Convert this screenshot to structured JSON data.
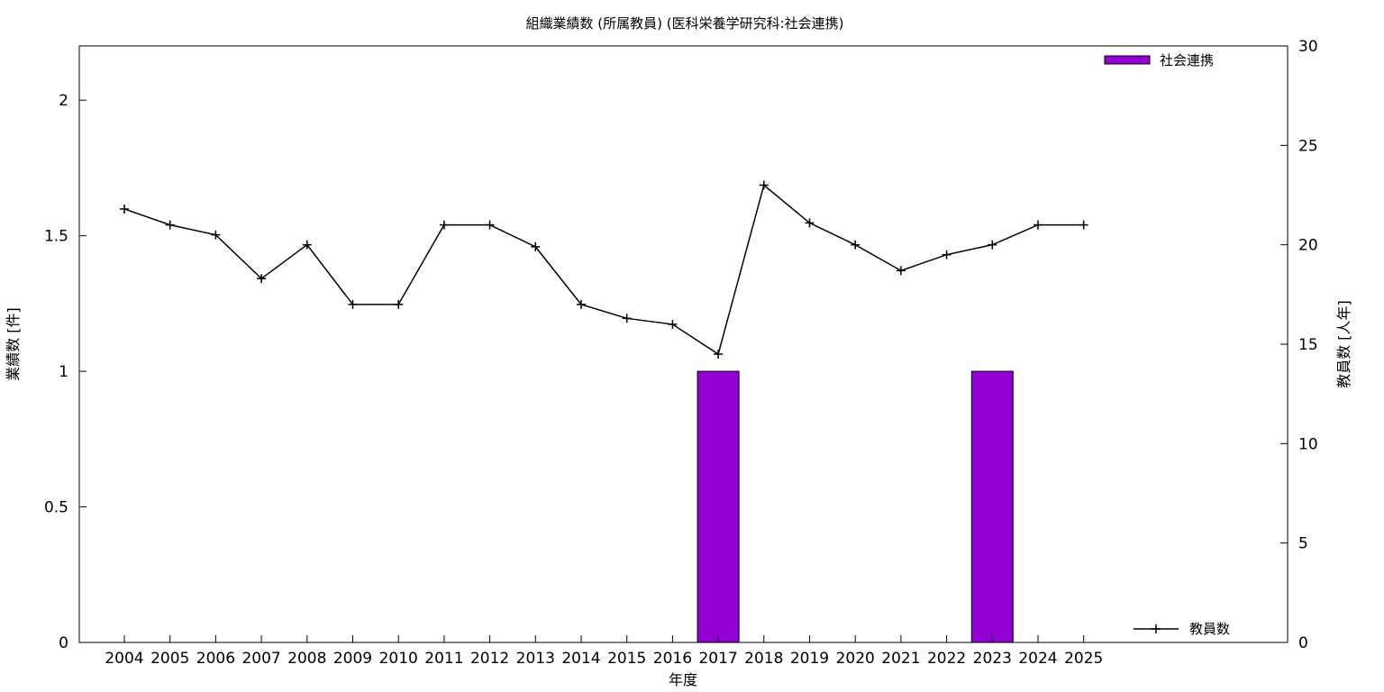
{
  "chart_data": {
    "type": "bar",
    "title": "組織業績数 (所属教員) (医科栄養学研究科:社会連携)",
    "xlabel": "年度",
    "ylabel": "業績数 [件]",
    "y2label": "教員数 [人年]",
    "categories": [
      "2004",
      "2005",
      "2006",
      "2007",
      "2008",
      "2009",
      "2010",
      "2011",
      "2012",
      "2013",
      "2014",
      "2015",
      "2016",
      "2017",
      "2018",
      "2019",
      "2020",
      "2021",
      "2022",
      "2023",
      "2024",
      "2025"
    ],
    "ylim": [
      0,
      2.2
    ],
    "yticks": [
      "0",
      "0.5",
      "1",
      "1.5",
      "2"
    ],
    "y2lim": [
      0,
      30
    ],
    "y2ticks": [
      "0",
      "5",
      "10",
      "15",
      "20",
      "25",
      "30"
    ],
    "grid": false,
    "series": [
      {
        "name": "社会連携",
        "type": "bar",
        "axis": "left",
        "color": "#9400d3",
        "values": [
          0,
          0,
          0,
          0,
          0,
          0,
          0,
          0,
          0,
          0,
          0,
          0,
          0,
          1,
          0,
          0,
          0,
          0,
          0,
          1,
          0,
          0
        ]
      },
      {
        "name": "教員数",
        "type": "line",
        "axis": "right",
        "color": "#000000",
        "values": [
          21.8,
          21.0,
          20.5,
          18.3,
          20.0,
          17.0,
          17.0,
          21.0,
          21.0,
          19.9,
          17.0,
          16.3,
          16.0,
          14.5,
          23.0,
          21.1,
          20.0,
          18.7,
          19.5,
          20.0,
          21.0,
          21.0
        ]
      }
    ],
    "legend": [
      {
        "series": "社会連携",
        "placement": "top-right"
      },
      {
        "series": "教員数",
        "placement": "bottom-right"
      }
    ]
  }
}
